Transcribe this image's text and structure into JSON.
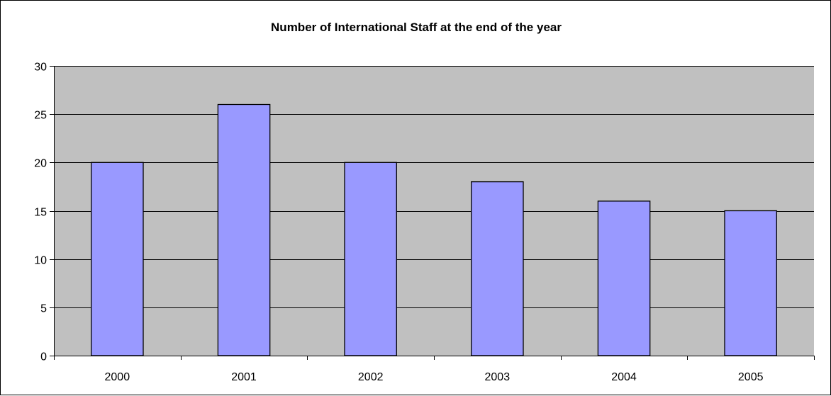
{
  "chart_data": {
    "type": "bar",
    "title": "Number of International Staff at the end of the year",
    "xlabel": "",
    "ylabel": "",
    "categories": [
      "2000",
      "2001",
      "2002",
      "2003",
      "2004",
      "2005"
    ],
    "values": [
      20,
      26,
      20,
      18,
      16,
      15
    ],
    "ylim": [
      0,
      30
    ],
    "yticks": [
      0,
      5,
      10,
      15,
      20,
      25,
      30
    ],
    "grid": true,
    "legend": "none",
    "colors": {
      "bar_fill": "#9999ff",
      "bar_stroke": "#000000",
      "plot_background": "#c0c0c0",
      "gridline": "#000000"
    }
  }
}
